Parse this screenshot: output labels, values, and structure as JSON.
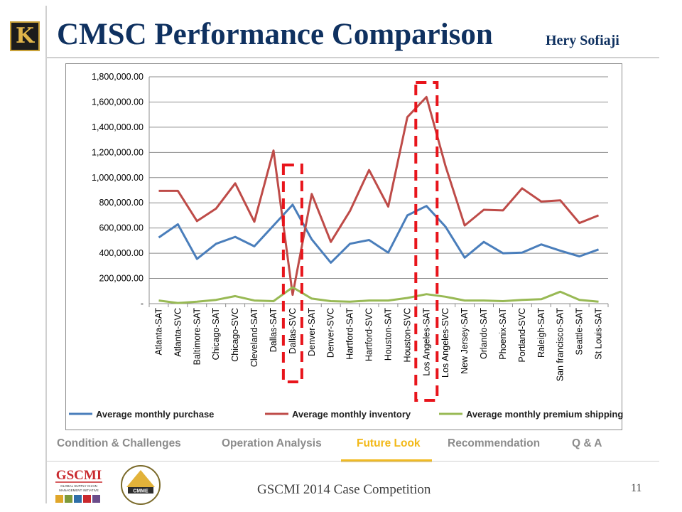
{
  "slide": {
    "title": "CMSC Performance Comparison",
    "author": "Hery Sofiaji",
    "footer": "GSCMI 2014 Case Competition",
    "page_number": "11",
    "logo_letter": "K",
    "gscmi_logo_text": "GSCMI",
    "gscmi_logo_sub1": "GLOBAL SUPPLY CHAIN",
    "gscmi_logo_sub2": "MANAGEMENT INITIATIVE",
    "cmme_logo_text": "CMME"
  },
  "nav": {
    "items": [
      {
        "label": "Condition & Challenges",
        "active": false
      },
      {
        "label": "Operation Analysis",
        "active": false
      },
      {
        "label": "Future Look",
        "active": true
      },
      {
        "label": "Recommendation",
        "active": false
      },
      {
        "label": "Q & A",
        "active": false
      }
    ]
  },
  "colors": {
    "title": "#0f3160",
    "nav_inactive": "#8c8c8c",
    "nav_active": "#f2b817",
    "highlight_box": "#e8141b"
  },
  "chart_data": {
    "type": "line",
    "title": "",
    "xlabel": "",
    "ylabel": "",
    "ylim": [
      0,
      1800000
    ],
    "yticks": [
      0,
      200000,
      400000,
      600000,
      800000,
      1000000,
      1200000,
      1400000,
      1600000,
      1800000
    ],
    "ytick_labels": [
      "-",
      "200,000.00",
      "400,000.00",
      "600,000.00",
      "800,000.00",
      "1,000,000.00",
      "1,200,000.00",
      "1,400,000.00",
      "1,600,000.00",
      "1,800,000.00"
    ],
    "grid": true,
    "legend_position": "bottom",
    "categories": [
      "Atlanta-SAT",
      "Atlanta-SVC",
      "Baltimore-SAT",
      "Chicago-SAT",
      "Chicago-SVC",
      "Cleveland-SAT",
      "Dallas-SAT",
      "Dallas-SVC",
      "Denver-SAT",
      "Denver-SVC",
      "Hartford-SAT",
      "Hartford-SVC",
      "Houston-SAT",
      "Houston-SVC",
      "Los Angeles-SAT",
      "Los Angeles-SVC",
      "New Jersey-SAT",
      "Orlando-SAT",
      "Phoenix-SAT",
      "Portland-SVC",
      "Raleigh-SAT",
      "San francisco-SAT",
      "Seattle-SAT",
      "St Louis-SAT"
    ],
    "series": [
      {
        "name": "Average monthly purchase",
        "color": "#4a7ebb",
        "values": [
          525000,
          630000,
          355000,
          475000,
          530000,
          455000,
          620000,
          785000,
          510000,
          325000,
          475000,
          505000,
          405000,
          700000,
          775000,
          610000,
          365000,
          490000,
          400000,
          405000,
          470000,
          420000,
          375000,
          430000
        ]
      },
      {
        "name": "Average monthly inventory",
        "color": "#be4b48",
        "values": [
          895000,
          895000,
          655000,
          755000,
          955000,
          650000,
          1215000,
          70000,
          870000,
          490000,
          735000,
          1060000,
          770000,
          1480000,
          1640000,
          1090000,
          620000,
          745000,
          740000,
          915000,
          810000,
          820000,
          640000,
          700000
        ]
      },
      {
        "name": "Average monthly premium shipping",
        "color": "#98b954",
        "values": [
          25000,
          5000,
          15000,
          30000,
          60000,
          25000,
          20000,
          130000,
          40000,
          20000,
          15000,
          25000,
          25000,
          45000,
          75000,
          55000,
          25000,
          25000,
          20000,
          30000,
          35000,
          95000,
          30000,
          15000
        ]
      }
    ],
    "highlights": [
      {
        "categories": [
          "Dallas-SVC"
        ]
      },
      {
        "categories": [
          "Los Angeles-SAT"
        ]
      }
    ]
  }
}
